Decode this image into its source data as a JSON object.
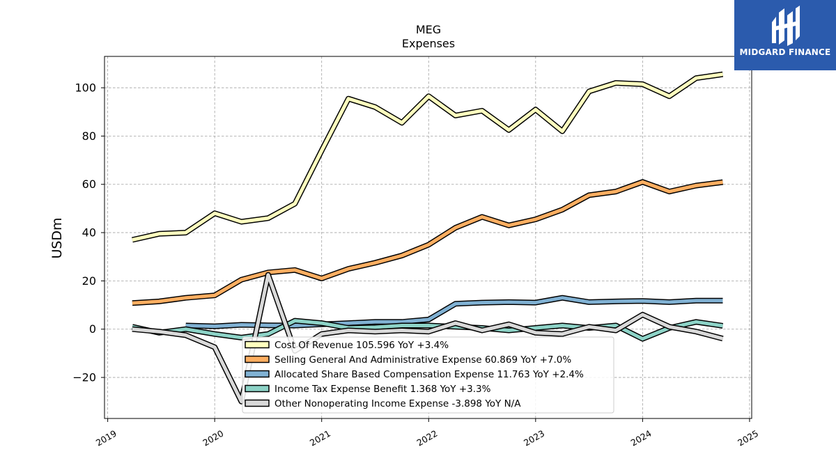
{
  "chart_data": {
    "type": "line",
    "title": "MEG",
    "subtitle": "Expenses",
    "ylabel": "USDm",
    "xlabel": "",
    "ylim": [
      -37,
      113
    ],
    "xlim": [
      2018.97,
      2025.02
    ],
    "yticks": [
      -20,
      0,
      20,
      40,
      60,
      80,
      100
    ],
    "xticks": [
      2019,
      2020,
      2021,
      2022,
      2023,
      2024,
      2025
    ],
    "xtick_labels": [
      "2019",
      "2020",
      "2021",
      "2022",
      "2023",
      "2024",
      "2025"
    ],
    "grid": true,
    "legend_position": "lower-center",
    "series": [
      {
        "name": "Cost Of Revenue",
        "legend": "Cost Of Revenue  105.596 YoY +3.4%",
        "color": "#ffffbf",
        "x": [
          2019.23,
          2019.48,
          2019.73,
          2020.0,
          2020.25,
          2020.5,
          2020.75,
          2021.0,
          2021.25,
          2021.5,
          2021.75,
          2022.0,
          2022.25,
          2022.5,
          2022.75,
          2023.0,
          2023.25,
          2023.5,
          2023.75,
          2024.0,
          2024.25,
          2024.5,
          2024.75
        ],
        "values": [
          37,
          39.5,
          40,
          48,
          44.5,
          46,
          52,
          74,
          95.5,
          92,
          85.5,
          96.5,
          88.5,
          90.5,
          82.5,
          91,
          82,
          98.5,
          102,
          101.5,
          96.5,
          104,
          105.6
        ]
      },
      {
        "name": "Selling General And Administrative Expense",
        "legend": "Selling General And Administrative Expense  60.869 YoY +7.0%",
        "color": "#fdae61",
        "x": [
          2019.23,
          2019.48,
          2019.73,
          2020.0,
          2020.25,
          2020.5,
          2020.75,
          2021.0,
          2021.25,
          2021.5,
          2021.75,
          2022.0,
          2022.25,
          2022.5,
          2022.75,
          2023.0,
          2023.25,
          2023.5,
          2023.75,
          2024.0,
          2024.25,
          2024.5,
          2024.75
        ],
        "values": [
          10.8,
          11.5,
          13,
          14,
          20.5,
          23.5,
          24.5,
          21,
          25,
          27.5,
          30.5,
          35,
          42,
          46.5,
          43,
          45.5,
          49.5,
          55.5,
          57,
          61,
          57,
          59.5,
          60.9
        ]
      },
      {
        "name": "Allocated Share Based Compensation Expense",
        "legend": "Allocated Share Based Compensation Expense  11.763 YoY +2.4%",
        "color": "#80b1d3",
        "x": [
          2019.73,
          2020.0,
          2020.25,
          2020.5,
          2020.75,
          2021.0,
          2021.25,
          2021.5,
          2021.75,
          2022.0,
          2022.25,
          2022.5,
          2022.75,
          2023.0,
          2023.25,
          2023.5,
          2023.75,
          2024.0,
          2024.25,
          2024.5,
          2024.75
        ],
        "values": [
          1.5,
          1.2,
          1.8,
          1.6,
          1.5,
          2,
          2.5,
          3,
          3,
          4,
          10.5,
          11,
          11.2,
          11,
          13,
          11.2,
          11.5,
          11.7,
          11.2,
          11.8,
          11.8
        ]
      },
      {
        "name": "Income Tax Expense Benefit",
        "legend": "Income Tax Expense Benefit  1.368 YoY +3.3%",
        "color": "#8dd3c7",
        "x": [
          2019.23,
          2019.48,
          2019.73,
          2020.0,
          2020.25,
          2020.5,
          2020.75,
          2021.0,
          2021.25,
          2021.5,
          2021.75,
          2022.0,
          2022.25,
          2022.5,
          2022.75,
          2023.0,
          2023.25,
          2023.5,
          2023.75,
          2024.0,
          2024.25,
          2024.5,
          2024.75
        ],
        "values": [
          1,
          -1.5,
          0,
          -2,
          -3.5,
          -2,
          3.5,
          2.5,
          0.5,
          0.8,
          1.5,
          1.5,
          1,
          0.5,
          -0.5,
          0.5,
          1.5,
          0.5,
          1.5,
          -4,
          0.5,
          3,
          1.4
        ]
      },
      {
        "name": "Other Nonoperating Income Expense",
        "legend": "Other Nonoperating Income Expense  -3.898 YoY N/A",
        "color": "#d9d9d9",
        "x": [
          2019.23,
          2019.48,
          2019.73,
          2020.0,
          2020.25,
          2020.5,
          2020.75,
          2021.0,
          2021.25,
          2021.5,
          2021.75,
          2022.0,
          2022.25,
          2022.5,
          2022.75,
          2023.0,
          2023.25,
          2023.5,
          2023.75,
          2024.0,
          2024.25,
          2024.5,
          2024.75
        ],
        "values": [
          0,
          -1,
          -2.5,
          -7.5,
          -30,
          22.5,
          -9,
          -2,
          -0.5,
          -1,
          -0.5,
          -1,
          2.5,
          -0.5,
          2,
          -1.5,
          -2,
          1,
          -0.5,
          6,
          1,
          -1,
          -3.9
        ]
      }
    ]
  },
  "logo": {
    "text": "MIDGARD FINANCE",
    "color": "#2b5bad"
  }
}
